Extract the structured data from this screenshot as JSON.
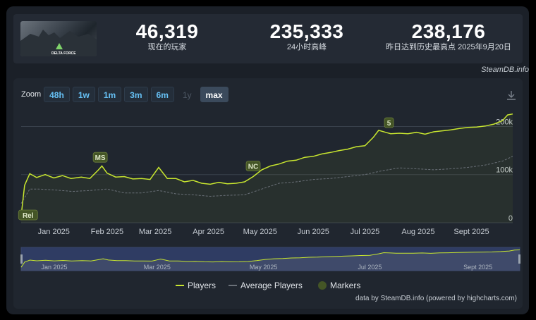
{
  "header": {
    "thumbnail_alt": "DELTA FORCE",
    "stats": [
      {
        "value": "46,319",
        "label": "现在的玩家"
      },
      {
        "value": "235,333",
        "label": "24小时高峰"
      },
      {
        "value": "238,176",
        "label": "昨日达到历史最高点 2025年9月20日"
      }
    ],
    "credit": "SteamDB.info"
  },
  "zoom": {
    "label": "Zoom",
    "buttons": [
      {
        "label": "48h",
        "state": "enabled"
      },
      {
        "label": "1w",
        "state": "enabled"
      },
      {
        "label": "1m",
        "state": "enabled"
      },
      {
        "label": "3m",
        "state": "enabled"
      },
      {
        "label": "6m",
        "state": "enabled"
      },
      {
        "label": "1y",
        "state": "disabled"
      },
      {
        "label": "max",
        "state": "selected"
      }
    ],
    "download_icon": "download-icon"
  },
  "chart_data": {
    "type": "line",
    "x_ticks": [
      "Jan 2025",
      "Feb 2025",
      "Mar 2025",
      "Apr 2025",
      "May 2025",
      "Jun 2025",
      "Jul 2025",
      "Aug 2025",
      "Sept 2025"
    ],
    "x_ticks_days": [
      19,
      50,
      78,
      109,
      139,
      170,
      200,
      231,
      262
    ],
    "y_ticks": [
      "0",
      "100k",
      "200k"
    ],
    "y_tick_values": [
      0,
      100000,
      200000
    ],
    "ylim": [
      0,
      230000
    ],
    "xlim_days": [
      0,
      286
    ],
    "grid": true,
    "legend_placement": "bottom",
    "colors": {
      "players": "#c8e62f",
      "average": "#6a7078",
      "marker_fill": "#445526",
      "marker_text": "#dfe8c8"
    },
    "series": [
      {
        "name": "Players",
        "x_days": [
          0,
          2,
          5,
          9,
          14,
          19,
          24,
          29,
          35,
          40,
          45,
          47,
          50,
          55,
          60,
          65,
          70,
          75,
          78,
          80,
          85,
          90,
          95,
          100,
          105,
          110,
          115,
          120,
          125,
          130,
          135,
          140,
          145,
          150,
          155,
          160,
          165,
          170,
          175,
          180,
          185,
          190,
          195,
          200,
          205,
          208,
          212,
          215,
          220,
          225,
          230,
          235,
          240,
          245,
          250,
          255,
          260,
          265,
          270,
          275,
          280,
          283,
          286
        ],
        "values": [
          15000,
          78000,
          102000,
          94000,
          100000,
          93000,
          98000,
          92000,
          95000,
          92000,
          110000,
          118000,
          103000,
          95000,
          96000,
          91000,
          92000,
          90000,
          105000,
          115000,
          92000,
          92000,
          85000,
          88000,
          82000,
          80000,
          84000,
          81000,
          82000,
          85000,
          96000,
          110000,
          118000,
          122000,
          128000,
          130000,
          136000,
          138000,
          143000,
          146000,
          150000,
          153000,
          158000,
          160000,
          178000,
          192000,
          188000,
          185000,
          186000,
          185000,
          188000,
          184000,
          189000,
          191000,
          193000,
          196000,
          198000,
          199000,
          201000,
          205000,
          212000,
          224000,
          226000
        ]
      },
      {
        "name": "Average Players",
        "x_days": [
          0,
          5,
          10,
          20,
          30,
          40,
          50,
          60,
          70,
          80,
          90,
          100,
          110,
          120,
          130,
          140,
          150,
          160,
          170,
          180,
          190,
          200,
          210,
          220,
          230,
          240,
          250,
          260,
          270,
          280,
          286
        ],
        "values": [
          40000,
          70000,
          70000,
          68000,
          65000,
          67000,
          70000,
          62000,
          62000,
          67000,
          60000,
          58000,
          55000,
          57000,
          58000,
          70000,
          82000,
          85000,
          90000,
          92000,
          96000,
          100000,
          108000,
          114000,
          112000,
          110000,
          112000,
          115000,
          120000,
          128000,
          138000
        ]
      }
    ],
    "markers": [
      {
        "label": "Rel",
        "day": 4
      },
      {
        "label": "MS",
        "day": 46
      },
      {
        "label": "NC",
        "day": 135
      },
      {
        "label": "5",
        "day": 214
      }
    ],
    "navigator_ticks": [
      "Jan 2025",
      "Mar 2025",
      "May 2025",
      "Jul 2025",
      "Sept 2025"
    ],
    "navigator_ticks_days": [
      19,
      78,
      139,
      200,
      262
    ],
    "legend": [
      "Players",
      "Average Players",
      "Markers"
    ]
  },
  "footer": {
    "credit": "data by SteamDB.info (powered by highcharts.com)"
  }
}
